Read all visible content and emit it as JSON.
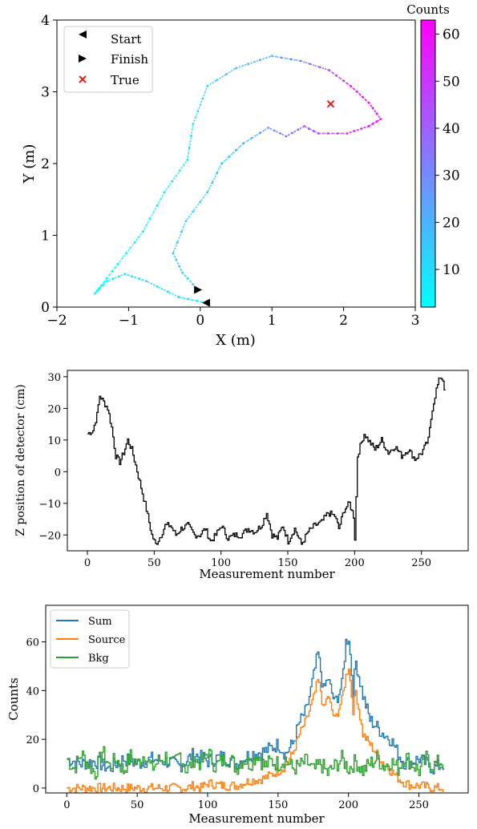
{
  "chart_data": [
    {
      "type": "scatter",
      "xlabel": "X (m)",
      "ylabel": "Y (m)",
      "xlim": [
        -2,
        3
      ],
      "ylim": [
        0,
        4
      ],
      "xticks": [
        "−2",
        "−1",
        "0",
        "1",
        "2",
        "3"
      ],
      "yticks": [
        "0",
        "1",
        "2",
        "3",
        "4"
      ],
      "colorbar": {
        "label": "Counts",
        "range": [
          2,
          63
        ],
        "ticks": [
          "10",
          "20",
          "30",
          "40",
          "50",
          "60"
        ],
        "colors": [
          "#00ffff",
          "#ff00ff"
        ]
      },
      "legend": {
        "placement": "top-left",
        "entries": [
          "Start",
          "Finish",
          "True"
        ]
      },
      "markers": {
        "start": {
          "x": 0.08,
          "y": 0.06
        },
        "finish": {
          "x": -0.03,
          "y": 0.24
        },
        "true_source": {
          "x": 1.82,
          "y": 2.83
        }
      },
      "path": [
        {
          "x": 0.08,
          "y": 0.06,
          "c": 5
        },
        {
          "x": -0.3,
          "y": 0.14,
          "c": 9
        },
        {
          "x": -0.75,
          "y": 0.36,
          "c": 11
        },
        {
          "x": -1.05,
          "y": 0.46,
          "c": 8
        },
        {
          "x": -1.3,
          "y": 0.36,
          "c": 5
        },
        {
          "x": -1.47,
          "y": 0.19,
          "c": 3
        },
        {
          "x": -1.38,
          "y": 0.3,
          "c": 3
        },
        {
          "x": -1.15,
          "y": 0.6,
          "c": 4
        },
        {
          "x": -0.8,
          "y": 1.05,
          "c": 5
        },
        {
          "x": -0.5,
          "y": 1.6,
          "c": 6
        },
        {
          "x": -0.18,
          "y": 2.05,
          "c": 7
        },
        {
          "x": -0.1,
          "y": 2.55,
          "c": 9
        },
        {
          "x": 0.1,
          "y": 3.08,
          "c": 12
        },
        {
          "x": 0.5,
          "y": 3.33,
          "c": 16
        },
        {
          "x": 1.0,
          "y": 3.5,
          "c": 22
        },
        {
          "x": 1.4,
          "y": 3.43,
          "c": 30
        },
        {
          "x": 1.8,
          "y": 3.3,
          "c": 42
        },
        {
          "x": 2.1,
          "y": 3.08,
          "c": 55
        },
        {
          "x": 2.35,
          "y": 2.85,
          "c": 62
        },
        {
          "x": 2.52,
          "y": 2.62,
          "c": 60
        },
        {
          "x": 2.35,
          "y": 2.52,
          "c": 55
        },
        {
          "x": 2.05,
          "y": 2.42,
          "c": 50
        },
        {
          "x": 1.65,
          "y": 2.42,
          "c": 48
        },
        {
          "x": 1.45,
          "y": 2.52,
          "c": 40
        },
        {
          "x": 1.2,
          "y": 2.38,
          "c": 35
        },
        {
          "x": 0.95,
          "y": 2.5,
          "c": 25
        },
        {
          "x": 0.6,
          "y": 2.28,
          "c": 18
        },
        {
          "x": 0.3,
          "y": 2.0,
          "c": 14
        },
        {
          "x": 0.1,
          "y": 1.6,
          "c": 12
        },
        {
          "x": -0.2,
          "y": 1.2,
          "c": 12
        },
        {
          "x": -0.38,
          "y": 0.75,
          "c": 14
        },
        {
          "x": -0.25,
          "y": 0.48,
          "c": 13
        },
        {
          "x": -0.03,
          "y": 0.24,
          "c": 10
        }
      ]
    },
    {
      "type": "line",
      "xlabel": "Measurement number",
      "ylabel": "Z position of detector (cm)",
      "xlim": [
        -15,
        285
      ],
      "ylim": [
        -25,
        32
      ],
      "xticks": [
        "0",
        "50",
        "100",
        "150",
        "200",
        "250"
      ],
      "yticks": [
        "−20",
        "−10",
        "0",
        "10",
        "20",
        "30"
      ],
      "series": [
        {
          "color": "#000000",
          "x": [
            0,
            4,
            7,
            9,
            12,
            15,
            18,
            21,
            24,
            27,
            30,
            33,
            36,
            40,
            44,
            48,
            51,
            55,
            58,
            62,
            66,
            70,
            75,
            80,
            84,
            88,
            92,
            96,
            100,
            105,
            110,
            115,
            120,
            125,
            130,
            134,
            138,
            142,
            146,
            150,
            155,
            160,
            165,
            170,
            175,
            180,
            185,
            188,
            192,
            196,
            199,
            200,
            202,
            204,
            207,
            210,
            215,
            220,
            225,
            230,
            235,
            240,
            245,
            250,
            255,
            258,
            261,
            264,
            266,
            268
          ],
          "y": [
            12,
            13,
            18,
            24,
            22,
            20,
            14,
            5,
            3,
            6,
            10,
            7,
            2,
            -5,
            -12,
            -20,
            -23,
            -20,
            -17,
            -17,
            -20,
            -18,
            -17,
            -20,
            -20,
            -18,
            -22,
            -20,
            -17,
            -21,
            -20,
            -20,
            -18,
            -19,
            -17,
            -13,
            -20,
            -21,
            -17,
            -22,
            -18,
            -23,
            -19,
            -17,
            -16,
            -13,
            -14,
            -18,
            -12,
            -10,
            -14,
            -21,
            5,
            8,
            12,
            10,
            7,
            10,
            6,
            8,
            5,
            7,
            4,
            6,
            10,
            20,
            26,
            30,
            29,
            24
          ]
        }
      ]
    },
    {
      "type": "line",
      "xlabel": "Measurement number",
      "ylabel": "Counts",
      "xlim": [
        -15,
        285
      ],
      "ylim": [
        -2,
        75
      ],
      "xticks": [
        "0",
        "50",
        "100",
        "150",
        "200",
        "250"
      ],
      "yticks": [
        "0",
        "20",
        "40",
        "60"
      ],
      "legend": {
        "placement": "top-left"
      },
      "series": [
        {
          "name": "Sum",
          "color": "#1f77b4",
          "x": [
            0,
            10,
            20,
            30,
            40,
            50,
            60,
            70,
            80,
            90,
            100,
            110,
            120,
            130,
            140,
            150,
            155,
            160,
            165,
            170,
            175,
            178,
            180,
            182,
            185,
            190,
            195,
            198,
            200,
            203,
            205,
            210,
            215,
            220,
            225,
            230,
            235,
            240,
            250,
            260,
            268
          ],
          "y": [
            12,
            10,
            11,
            8,
            12,
            10,
            12,
            11,
            9,
            14,
            11,
            13,
            10,
            14,
            15,
            18,
            14,
            18,
            27,
            32,
            46,
            55,
            48,
            40,
            45,
            35,
            42,
            60,
            62,
            40,
            52,
            38,
            28,
            25,
            22,
            20,
            14,
            10,
            12,
            8,
            10
          ]
        },
        {
          "name": "Source",
          "color": "#ff7f0e",
          "x": [
            0,
            10,
            20,
            30,
            40,
            50,
            60,
            70,
            80,
            85,
            90,
            95,
            100,
            110,
            120,
            130,
            140,
            150,
            155,
            160,
            165,
            170,
            175,
            178,
            180,
            182,
            185,
            190,
            195,
            198,
            200,
            203,
            205,
            210,
            215,
            220,
            225,
            230,
            235,
            240,
            245,
            250,
            260,
            268
          ],
          "y": [
            0,
            0,
            0,
            0,
            0,
            0,
            0,
            0,
            0,
            0,
            1,
            0,
            2,
            1,
            1,
            3,
            4,
            7,
            9,
            14,
            22,
            28,
            37,
            44,
            40,
            32,
            38,
            28,
            36,
            46,
            50,
            32,
            40,
            22,
            18,
            14,
            10,
            7,
            4,
            2,
            1,
            1,
            0,
            0
          ]
        },
        {
          "name": "Bkg",
          "color": "#2ca02c",
          "x": [
            0,
            5,
            10,
            15,
            20,
            25,
            30,
            35,
            40,
            45,
            50,
            55,
            60,
            65,
            70,
            75,
            80,
            85,
            90,
            95,
            100,
            105,
            110,
            115,
            120,
            125,
            130,
            135,
            140,
            145,
            150,
            155,
            160,
            165,
            170,
            175,
            180,
            185,
            190,
            195,
            200,
            205,
            210,
            215,
            220,
            225,
            230,
            235,
            240,
            245,
            250,
            255,
            260,
            265,
            268
          ],
          "y": [
            12,
            8,
            14,
            10,
            6,
            15,
            9,
            12,
            7,
            13,
            10,
            14,
            8,
            11,
            13,
            9,
            14,
            7,
            12,
            10,
            15,
            9,
            11,
            13,
            8,
            12,
            10,
            14,
            9,
            11,
            10,
            12,
            8,
            9,
            11,
            7,
            10,
            6,
            9,
            12,
            8,
            11,
            7,
            10,
            12,
            9,
            11,
            8,
            13,
            10,
            7,
            12,
            9,
            11,
            10
          ]
        }
      ]
    }
  ]
}
